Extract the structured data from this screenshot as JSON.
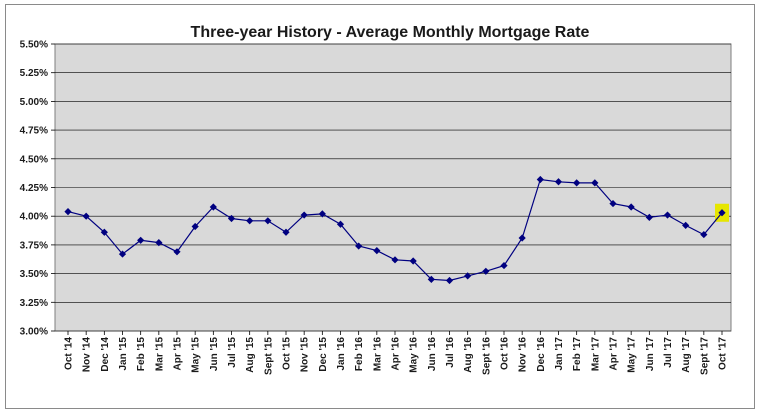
{
  "chart_data": {
    "type": "line",
    "title": "Three-year History - Average Monthly Mortgage Rate",
    "xlabel": "",
    "ylabel": "",
    "ylim": [
      3.0,
      5.5
    ],
    "ytick_values": [
      3.0,
      3.25,
      3.5,
      3.75,
      4.0,
      4.25,
      4.5,
      4.75,
      5.0,
      5.25,
      5.5
    ],
    "ytick_labels": [
      "3.00%",
      "3.25%",
      "3.50%",
      "3.75%",
      "4.00%",
      "4.25%",
      "4.50%",
      "4.75%",
      "5.00%",
      "5.25%",
      "5.50%"
    ],
    "grid": true,
    "legend": "none",
    "colors": {
      "line": "#000080",
      "marker": "#000080",
      "plot_background": "#d9d9d9",
      "gridline": "#000000",
      "highlight": "#e6e600"
    },
    "highlight_last_point": true,
    "categories": [
      "Oct '14",
      "Nov '14",
      "Dec '14",
      "Jan '15",
      "Feb '15",
      "Mar '15",
      "Apr '15",
      "May '15",
      "Jun '15",
      "Jul '15",
      "Aug '15",
      "Sept '15",
      "Oct '15",
      "Nov '15",
      "Dec '15",
      "Jan '16",
      "Feb '16",
      "Mar '16",
      "Apr '16",
      "May '16",
      "Jun '16",
      "Jul '16",
      "Aug '16",
      "Sept '16",
      "Oct '16",
      "Nov '16",
      "Dec '16",
      "Jan '17",
      "Feb '17",
      "Mar '17",
      "Apr '17",
      "May '17",
      "Jun '17",
      "Jul '17",
      "Aug '17",
      "Sept '17",
      "Oct '17"
    ],
    "series": [
      {
        "values": [
          4.04,
          4.0,
          3.86,
          3.67,
          3.79,
          3.77,
          3.69,
          3.91,
          4.08,
          3.98,
          3.96,
          3.96,
          3.86,
          4.01,
          4.02,
          3.93,
          3.74,
          3.7,
          3.62,
          3.61,
          3.45,
          3.44,
          3.48,
          3.52,
          3.57,
          3.81,
          4.32,
          4.3,
          4.29,
          4.29,
          4.11,
          4.08,
          3.99,
          4.01,
          3.92,
          3.84,
          4.03
        ]
      }
    ]
  }
}
